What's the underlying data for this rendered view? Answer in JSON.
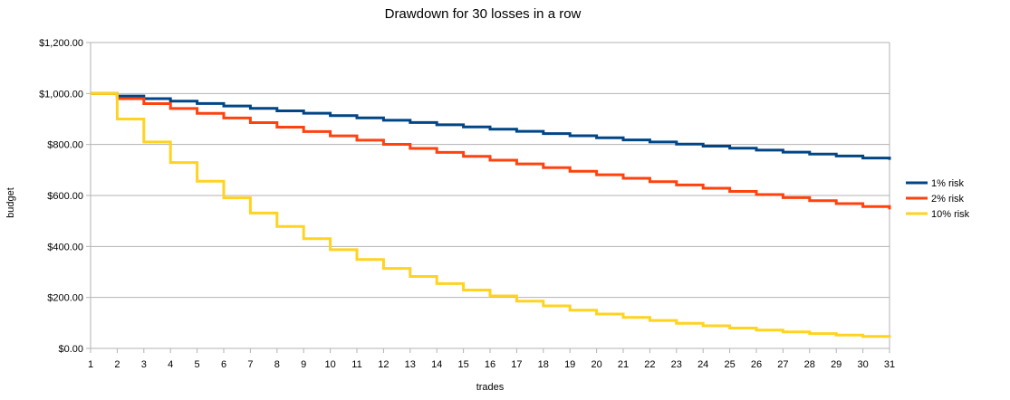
{
  "chart_data": {
    "type": "line",
    "step": true,
    "title": "Drawdown for 30 losses in a row",
    "xlabel": "trades",
    "ylabel": "budget",
    "x": [
      1,
      2,
      3,
      4,
      5,
      6,
      7,
      8,
      9,
      10,
      11,
      12,
      13,
      14,
      15,
      16,
      17,
      18,
      19,
      20,
      21,
      22,
      23,
      24,
      25,
      26,
      27,
      28,
      29,
      30,
      31
    ],
    "ylim": [
      0,
      1200
    ],
    "yticks": [
      0,
      200,
      400,
      600,
      800,
      1000,
      1200
    ],
    "ytick_labels": [
      "$0.00",
      "$200.00",
      "$400.00",
      "$600.00",
      "$800.00",
      "$1,000.00",
      "$1,200.00"
    ],
    "grid": true,
    "legend_position": "right",
    "series": [
      {
        "name": "1% risk",
        "color": "#004586",
        "values": [
          1000,
          990,
          980.1,
          970.3,
          960.6,
          951,
          941.5,
          932.1,
          922.7,
          913.5,
          904.4,
          895.3,
          886.4,
          877.5,
          868.8,
          860.1,
          851.5,
          842.9,
          834.5,
          826.2,
          817.9,
          809.7,
          801.6,
          793.6,
          785.7,
          777.8,
          770,
          762.3,
          754.7,
          747.1,
          739.7
        ]
      },
      {
        "name": "2% risk",
        "color": "#ff420e",
        "values": [
          1000,
          980,
          960.4,
          941.2,
          922.4,
          903.9,
          885.8,
          868.1,
          850.8,
          833.7,
          817.1,
          800.7,
          784.7,
          769,
          753.6,
          738.6,
          723.8,
          709.3,
          695.1,
          681.2,
          667.6,
          654.3,
          641.2,
          628.4,
          615.8,
          603.5,
          591.4,
          579.6,
          568,
          556.6,
          545.5
        ]
      },
      {
        "name": "10% risk",
        "color": "#ffd320",
        "values": [
          1000,
          900,
          810,
          729,
          656.1,
          590.5,
          531.4,
          478.3,
          430.5,
          387.4,
          348.7,
          313.8,
          282.4,
          254.2,
          228.8,
          205.9,
          185.3,
          166.8,
          150.1,
          135.1,
          121.6,
          109.4,
          98.5,
          88.6,
          79.8,
          71.8,
          64.6,
          58.1,
          52.3,
          47.1,
          42.4
        ]
      }
    ]
  }
}
